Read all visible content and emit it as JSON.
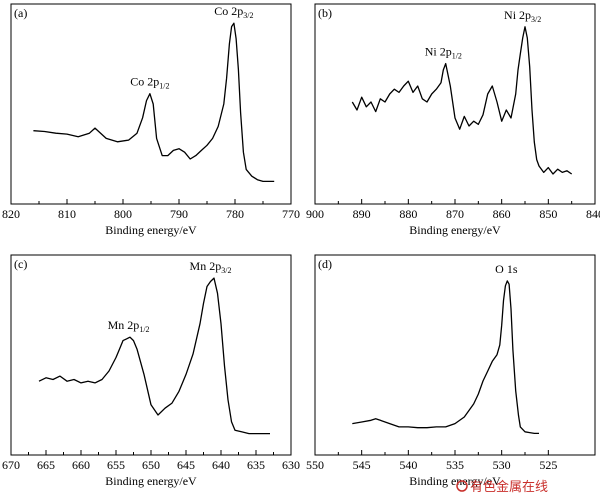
{
  "chart_data": [
    {
      "type": "line",
      "panel_label": "(a)",
      "xlabel": "Binding energy/eV",
      "ylabel": "",
      "xlim": [
        820,
        770
      ],
      "ylim": [
        0,
        1
      ],
      "xticks": [
        820,
        810,
        800,
        790,
        780,
        770
      ],
      "x_reversed": true,
      "annotations": [
        {
          "base": "Co 2p",
          "sub": "1/2",
          "x": 795.2,
          "y": 0.56
        },
        {
          "base": "Co 2p",
          "sub": "3/2",
          "x": 780.2,
          "y": 0.97
        }
      ],
      "series": [
        {
          "x": [
            816,
            814,
            812,
            810,
            808,
            806,
            805,
            803,
            801,
            799,
            797.5,
            796.5,
            795.8,
            795.2,
            794.6,
            794,
            793,
            792,
            791,
            790,
            789,
            788,
            787,
            786,
            785,
            784,
            783,
            782,
            781.5,
            781,
            780.6,
            780.2,
            779.8,
            779.4,
            779,
            778.5,
            778,
            777,
            776,
            775,
            774,
            773
          ],
          "y": [
            0.345,
            0.34,
            0.33,
            0.325,
            0.31,
            0.33,
            0.36,
            0.3,
            0.28,
            0.29,
            0.33,
            0.42,
            0.52,
            0.56,
            0.5,
            0.3,
            0.2,
            0.2,
            0.23,
            0.24,
            0.22,
            0.18,
            0.2,
            0.23,
            0.26,
            0.3,
            0.37,
            0.5,
            0.65,
            0.85,
            0.95,
            0.97,
            0.88,
            0.7,
            0.45,
            0.22,
            0.12,
            0.08,
            0.06,
            0.05,
            0.05,
            0.05
          ]
        }
      ]
    },
    {
      "type": "line",
      "panel_label": "(b)",
      "xlabel": "Binding energy/eV",
      "ylabel": "",
      "xlim": [
        900,
        840
      ],
      "ylim": [
        0,
        1
      ],
      "xticks": [
        900,
        890,
        880,
        870,
        860,
        850,
        840
      ],
      "x_reversed": true,
      "annotations": [
        {
          "base": "Ni 2p",
          "sub": "1/2",
          "x": 872.5,
          "y": 0.74
        },
        {
          "base": "Ni 2p",
          "sub": "3/2",
          "x": 855.5,
          "y": 0.97
        }
      ],
      "series": [
        {
          "x": [
            892,
            891,
            890,
            889,
            888,
            887,
            886,
            885,
            884,
            883,
            882,
            881,
            880,
            879,
            878,
            877,
            876,
            875,
            874,
            873,
            872.5,
            872,
            871,
            870,
            869,
            868,
            867,
            866,
            865,
            864,
            863,
            862,
            861,
            860,
            859,
            858,
            857,
            856.5,
            856,
            855.5,
            855,
            854.5,
            854,
            853.5,
            853,
            852.5,
            852,
            851,
            850,
            849,
            848,
            847,
            846,
            845
          ],
          "y": [
            0.5,
            0.45,
            0.53,
            0.47,
            0.5,
            0.44,
            0.52,
            0.5,
            0.55,
            0.58,
            0.56,
            0.6,
            0.63,
            0.56,
            0.6,
            0.52,
            0.5,
            0.55,
            0.58,
            0.62,
            0.7,
            0.74,
            0.6,
            0.4,
            0.33,
            0.41,
            0.35,
            0.38,
            0.36,
            0.42,
            0.55,
            0.6,
            0.5,
            0.38,
            0.45,
            0.4,
            0.55,
            0.7,
            0.8,
            0.9,
            0.97,
            0.9,
            0.72,
            0.45,
            0.25,
            0.14,
            0.1,
            0.06,
            0.09,
            0.05,
            0.08,
            0.06,
            0.07,
            0.05
          ]
        }
      ]
    },
    {
      "type": "line",
      "panel_label": "(c)",
      "xlabel": "Binding energy/eV",
      "ylabel": "",
      "xlim": [
        670,
        630
      ],
      "ylim": [
        0,
        1
      ],
      "xticks": [
        670,
        665,
        660,
        655,
        650,
        645,
        640,
        635,
        630
      ],
      "x_reversed": true,
      "annotations": [
        {
          "base": "Mn 2p",
          "sub": "1/2",
          "x": 653.2,
          "y": 0.62
        },
        {
          "base": "Mn 2p",
          "sub": "3/2",
          "x": 641.5,
          "y": 0.97
        }
      ],
      "series": [
        {
          "x": [
            666,
            665,
            664,
            663,
            662,
            661,
            660,
            659,
            658,
            657,
            656,
            655,
            654.5,
            654,
            653.5,
            653,
            652.5,
            652,
            651,
            650,
            649,
            648,
            647,
            646,
            645,
            644,
            643,
            642.5,
            642,
            641.5,
            641,
            640.5,
            640,
            639.5,
            639,
            638.5,
            638,
            637,
            636,
            635,
            634,
            633
          ],
          "y": [
            0.36,
            0.38,
            0.37,
            0.39,
            0.36,
            0.37,
            0.35,
            0.36,
            0.35,
            0.37,
            0.42,
            0.5,
            0.55,
            0.6,
            0.61,
            0.62,
            0.6,
            0.55,
            0.4,
            0.22,
            0.16,
            0.2,
            0.23,
            0.3,
            0.4,
            0.52,
            0.7,
            0.82,
            0.92,
            0.95,
            0.97,
            0.88,
            0.7,
            0.45,
            0.25,
            0.12,
            0.07,
            0.06,
            0.05,
            0.05,
            0.05,
            0.05
          ]
        }
      ]
    },
    {
      "type": "line",
      "panel_label": "(d)",
      "xlabel": "Binding energy/eV",
      "ylabel": "",
      "xlim": [
        550,
        520
      ],
      "ylim": [
        0,
        1
      ],
      "xticks": [
        550,
        545,
        540,
        535,
        530,
        525
      ],
      "x_reversed": true,
      "annotations": [
        {
          "base": "O 1s",
          "sub": "",
          "x": 529.5,
          "y": 0.97
        }
      ],
      "series": [
        {
          "x": [
            546,
            545,
            544,
            543.5,
            543,
            542,
            541,
            540,
            539,
            538,
            537,
            536,
            535,
            534,
            533,
            532.5,
            532,
            531.5,
            531,
            530.5,
            530.2,
            530,
            529.8,
            529.6,
            529.4,
            529.2,
            529,
            528.8,
            528.5,
            528.2,
            528,
            527.5,
            527,
            526.5,
            526
          ],
          "y": [
            0.1,
            0.11,
            0.12,
            0.13,
            0.12,
            0.1,
            0.08,
            0.08,
            0.075,
            0.075,
            0.08,
            0.08,
            0.1,
            0.14,
            0.22,
            0.28,
            0.36,
            0.42,
            0.48,
            0.52,
            0.58,
            0.7,
            0.85,
            0.94,
            0.97,
            0.95,
            0.8,
            0.55,
            0.3,
            0.15,
            0.08,
            0.05,
            0.045,
            0.04,
            0.04
          ]
        }
      ]
    }
  ],
  "watermark": "有色金属在线",
  "colors": {
    "line": "#000000",
    "watermark": "#c9302c"
  },
  "icons": [
    "watermark-logo-icon"
  ]
}
